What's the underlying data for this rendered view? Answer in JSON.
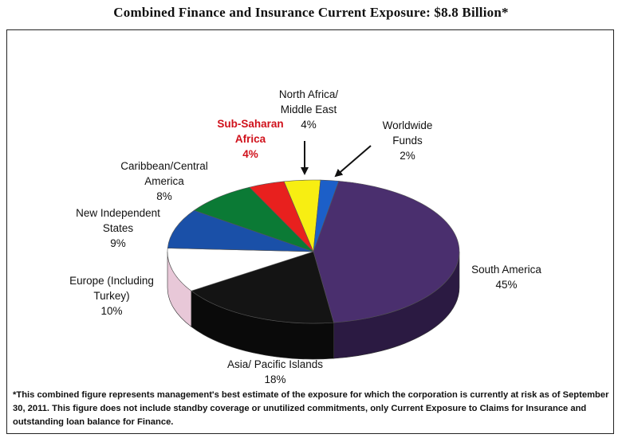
{
  "title": "Combined Finance and Insurance Current Exposure: $8.8 Billion*",
  "footnote": "*This combined figure represents management's best estimate of the exposure for which the corporation is currently at risk as of September 30, 2011. This figure does not include standby coverage or unutilized commitments, only Current Exposure to Claims for Insurance and outstanding loan balance for Finance.",
  "chart_data": {
    "type": "pie",
    "title": "Combined Finance and Insurance Current Exposure: $8.8 Billion*",
    "slices": [
      {
        "label_lines": [
          "South America"
        ],
        "value_text": "45%",
        "value": 45,
        "color": "#4a2f6e",
        "side": "#2b1a42"
      },
      {
        "label_lines": [
          "Asia/ Pacific Islands"
        ],
        "value_text": "18%",
        "value": 18,
        "color": "#141414",
        "side": "#0a0a0a"
      },
      {
        "label_lines": [
          "Europe (Including",
          "Turkey)"
        ],
        "value_text": "10%",
        "value": 10,
        "color": "#ffffff",
        "side": "#e8c8d8"
      },
      {
        "label_lines": [
          "New Independent",
          "States"
        ],
        "value_text": "9%",
        "value": 9,
        "color": "#1a50a8",
        "side": "#0e2f66"
      },
      {
        "label_lines": [
          "Caribbean/Central",
          "America"
        ],
        "value_text": "8%",
        "value": 8,
        "color": "#0b7a35",
        "side": "#064a20"
      },
      {
        "label_lines": [
          "Sub-Saharan",
          "Africa"
        ],
        "value_text": "4%",
        "value": 4,
        "color": "#e8201e",
        "side": "#8c1010",
        "highlight": true
      },
      {
        "label_lines": [
          "North Africa/",
          "Middle East"
        ],
        "value_text": "4%",
        "value": 4,
        "color": "#f7ee12",
        "side": "#a89f05"
      },
      {
        "label_lines": [
          "Worldwide",
          "Funds"
        ],
        "value_text": "2%",
        "value": 2,
        "color": "#1c5fc8",
        "side": "#0f3678"
      }
    ],
    "legend": "none",
    "style": "3d-pie"
  }
}
